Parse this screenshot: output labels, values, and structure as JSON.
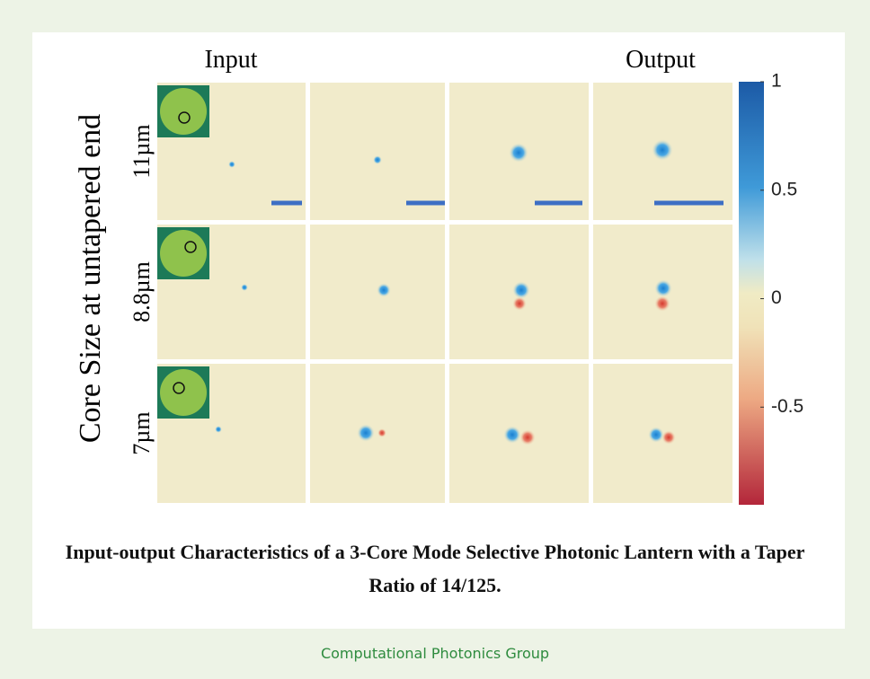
{
  "figure": {
    "y_axis_label": "Core Size at untapered end",
    "column_labels": [
      "Input",
      "Output"
    ],
    "row_labels": [
      "11µm",
      "8.8µm",
      "7µm"
    ],
    "colorbar": {
      "lim": [
        -0.95,
        1
      ],
      "ticks": [
        1,
        0.5,
        0,
        -0.5
      ]
    },
    "caption": "Input-output Characteristics of a 3-Core Mode Selective Photonic Lantern with a Taper Ratio of 14/125."
  },
  "footer": "Computational Photonics Group"
}
